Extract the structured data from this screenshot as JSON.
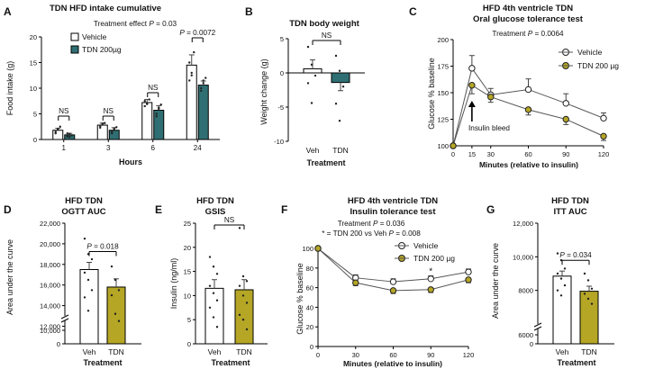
{
  "colors": {
    "vehicle": "#ffffff",
    "teal": "#2f6f73",
    "olive": "#b5a626",
    "axis": "#000000",
    "err": "#666666"
  },
  "chart_data": [
    {
      "panel": "A",
      "type": "bar",
      "title": "TDN HFD intake cumulative",
      "note": {
        "pre": "Treatment effect ",
        "p": "P",
        "post": " = 0.03"
      },
      "xlabel": "Hours",
      "ylabel": "Food intake (g)",
      "categories": [
        "1",
        "3",
        "6",
        "24"
      ],
      "ylim": [
        0,
        20
      ],
      "yticks": [
        "0",
        "5",
        "10",
        "15",
        "20"
      ],
      "series": [
        {
          "name": "Vehicle",
          "color": "#ffffff",
          "values": [
            1.8,
            2.8,
            7.2,
            14.5
          ],
          "err": [
            0.4,
            0.4,
            0.6,
            2.0
          ],
          "points": [
            [
              1.2,
              2.1,
              2.5,
              1.5,
              1.9
            ],
            [
              2.3,
              3.0,
              3.2,
              2.6,
              3.1
            ],
            [
              6.5,
              7.0,
              7.8,
              7.5,
              6.9
            ],
            [
              11.5,
              13.0,
              17.0,
              15.0,
              12.5
            ]
          ]
        },
        {
          "name": "TDN 200µg",
          "color": "#2f6f73",
          "values": [
            0.9,
            1.8,
            5.7,
            10.6
          ],
          "err": [
            0.3,
            0.5,
            0.9,
            0.8
          ],
          "points": [
            [
              0.6,
              1.1,
              0.8,
              1.2,
              0.5
            ],
            [
              1.2,
              2.2,
              2.4,
              1.5,
              1.9
            ],
            [
              4.5,
              6.0,
              6.8,
              5.0,
              6.2
            ],
            [
              9.5,
              11.0,
              12.0,
              10.0,
              11.5
            ]
          ]
        }
      ],
      "brackets": [
        {
          "cat": 0,
          "label": "NS"
        },
        {
          "cat": 1,
          "label": "NS"
        },
        {
          "cat": 2,
          "label": "NS"
        },
        {
          "cat": 3,
          "label": "= 0.0072",
          "p": "P"
        }
      ]
    },
    {
      "panel": "B",
      "type": "bar",
      "title": "TDN body weight",
      "xlabel": "Treatment",
      "ylabel": "Weight change (g)",
      "categories": [
        "Veh",
        "TDN"
      ],
      "colors": [
        "#ffffff",
        "#2f6f73"
      ],
      "values": [
        0.6,
        -1.4
      ],
      "err": [
        1.3,
        1.2
      ],
      "points": [
        [
          3.8,
          1.2,
          -0.4,
          -1.5,
          -4.4
        ],
        [
          2.5,
          0.3,
          -2.0,
          -4.5,
          -7.0
        ]
      ],
      "ylim": [
        -10,
        5
      ],
      "yticks": [
        "-10",
        "-5",
        "0",
        "5"
      ],
      "brackets": [
        {
          "from": 0,
          "to": 1,
          "label": "NS"
        }
      ]
    },
    {
      "panel": "C",
      "type": "line",
      "title": "HFD 4th ventricle TDN",
      "subtitle": "Oral glucose tolerance test",
      "note": {
        "pre": "Treatment ",
        "p": "P",
        "post": " = 0.0064"
      },
      "xlabel": "Minutes (relative to insulin)",
      "ylabel": "Glucose % baseline",
      "x": [
        0,
        15,
        30,
        60,
        90,
        120
      ],
      "xlim": [
        0,
        120
      ],
      "ylim": [
        100,
        200
      ],
      "xticks": [
        "0",
        "15",
        "30",
        "60",
        "90",
        "120"
      ],
      "yticks": [
        "100",
        "125",
        "150",
        "175",
        "200"
      ],
      "series": [
        {
          "name": "Vehicle",
          "color": "#ffffff",
          "values": [
            100,
            173,
            148,
            153,
            140,
            126
          ],
          "err": [
            0,
            12,
            6,
            10,
            9,
            5
          ]
        },
        {
          "name": "TDN 200 µg",
          "color": "#b5a626",
          "values": [
            100,
            157,
            146,
            134,
            125,
            109
          ],
          "err": [
            0,
            8,
            5,
            5,
            5,
            4
          ]
        }
      ],
      "annotation": "Insulin bleed"
    },
    {
      "panel": "D",
      "type": "bar",
      "title": "HFD TDN",
      "subtitle": "OGTT AUC",
      "xlabel": "Treatment",
      "ylabel": "Area under the curve",
      "categories": [
        "Veh",
        "TDN"
      ],
      "colors": [
        "#ffffff",
        "#b5a626"
      ],
      "values": [
        17500,
        15800
      ],
      "err": [
        700,
        800
      ],
      "points": [
        [
          20500,
          19000,
          18500,
          17200,
          16500,
          15500,
          14800,
          13500
        ],
        [
          17800,
          16500,
          15500,
          15000,
          13200,
          12500
        ]
      ],
      "ylim": [
        13000,
        22000
      ],
      "axis_break": true,
      "yticks": [
        "0",
        "10,000",
        "12,000",
        "14,000",
        "16,000",
        "18,000",
        "20,000",
        "22,000"
      ],
      "brackets": [
        {
          "from": 0,
          "to": 1,
          "label": " = 0.018",
          "p": "P"
        }
      ]
    },
    {
      "panel": "E",
      "type": "bar",
      "title": "HFD TDN",
      "subtitle": "GSIS",
      "xlabel": "Treatment",
      "ylabel": "Insulin (ng/ml)",
      "categories": [
        "Veh",
        "TDN"
      ],
      "colors": [
        "#ffffff",
        "#b5a626"
      ],
      "values": [
        11.5,
        11.2
      ],
      "err": [
        1.8,
        2.1
      ],
      "points": [
        [
          18.0,
          16.0,
          14.5,
          12.0,
          10.5,
          9.0,
          7.5,
          5.5,
          3.5
        ],
        [
          24.0,
          14.0,
          13.0,
          12.0,
          10.0,
          8.5,
          6.0,
          5.0,
          3.0
        ]
      ],
      "ylim": [
        0,
        25
      ],
      "yticks": [
        "0",
        "5",
        "10",
        "15",
        "20",
        "25"
      ],
      "brackets": [
        {
          "from": 0,
          "to": 1,
          "label": "NS"
        }
      ]
    },
    {
      "panel": "F",
      "type": "line",
      "title": "HFD 4th ventricle TDN",
      "subtitle": "Insulin tolerance test",
      "note": {
        "pre": "Treatment ",
        "p": "P",
        "post": " = 0.036"
      },
      "note2": {
        "pre": "* = TDN 200 vs Veh ",
        "p": "P",
        "post": " = 0.008"
      },
      "xlabel": "Minutes (relative to insulin)",
      "ylabel": "Glucose % baseline",
      "x": [
        0,
        30,
        60,
        90,
        120
      ],
      "xlim": [
        0,
        120
      ],
      "ylim": [
        0,
        100
      ],
      "xticks": [
        "0",
        "30",
        "60",
        "90",
        "120"
      ],
      "yticks": [
        "0",
        "20",
        "40",
        "60",
        "80",
        "100"
      ],
      "series": [
        {
          "name": "Vehicle",
          "color": "#ffffff",
          "values": [
            100,
            70,
            66,
            69,
            76
          ],
          "err": [
            0,
            3,
            3,
            3,
            3
          ]
        },
        {
          "name": "TDN 200 µg",
          "color": "#b5a626",
          "values": [
            100,
            65,
            57,
            58,
            68
          ],
          "err": [
            0,
            3,
            3,
            3,
            3
          ]
        }
      ],
      "star": {
        "x": 90,
        "label": "*"
      }
    },
    {
      "panel": "G",
      "type": "bar",
      "title": "HFD TDN",
      "subtitle": "ITT AUC",
      "xlabel": "Treatment",
      "ylabel": "Area under the curve",
      "categories": [
        "Veh",
        "TDN"
      ],
      "colors": [
        "#ffffff",
        "#b5a626"
      ],
      "values": [
        8850,
        7950
      ],
      "err": [
        300,
        300
      ],
      "points": [
        [
          10200,
          9800,
          9300,
          9000,
          8700,
          8300,
          8000,
          7700
        ],
        [
          9000,
          8600,
          8100,
          7800,
          7500,
          7200
        ]
      ],
      "ylim": [
        6000,
        12000
      ],
      "axis_break": true,
      "yticks": [
        "0",
        "6000",
        "8000",
        "10,000",
        "12,000"
      ],
      "brackets": [
        {
          "from": 0,
          "to": 1,
          "label": " = 0.034",
          "p": "P"
        }
      ]
    }
  ]
}
